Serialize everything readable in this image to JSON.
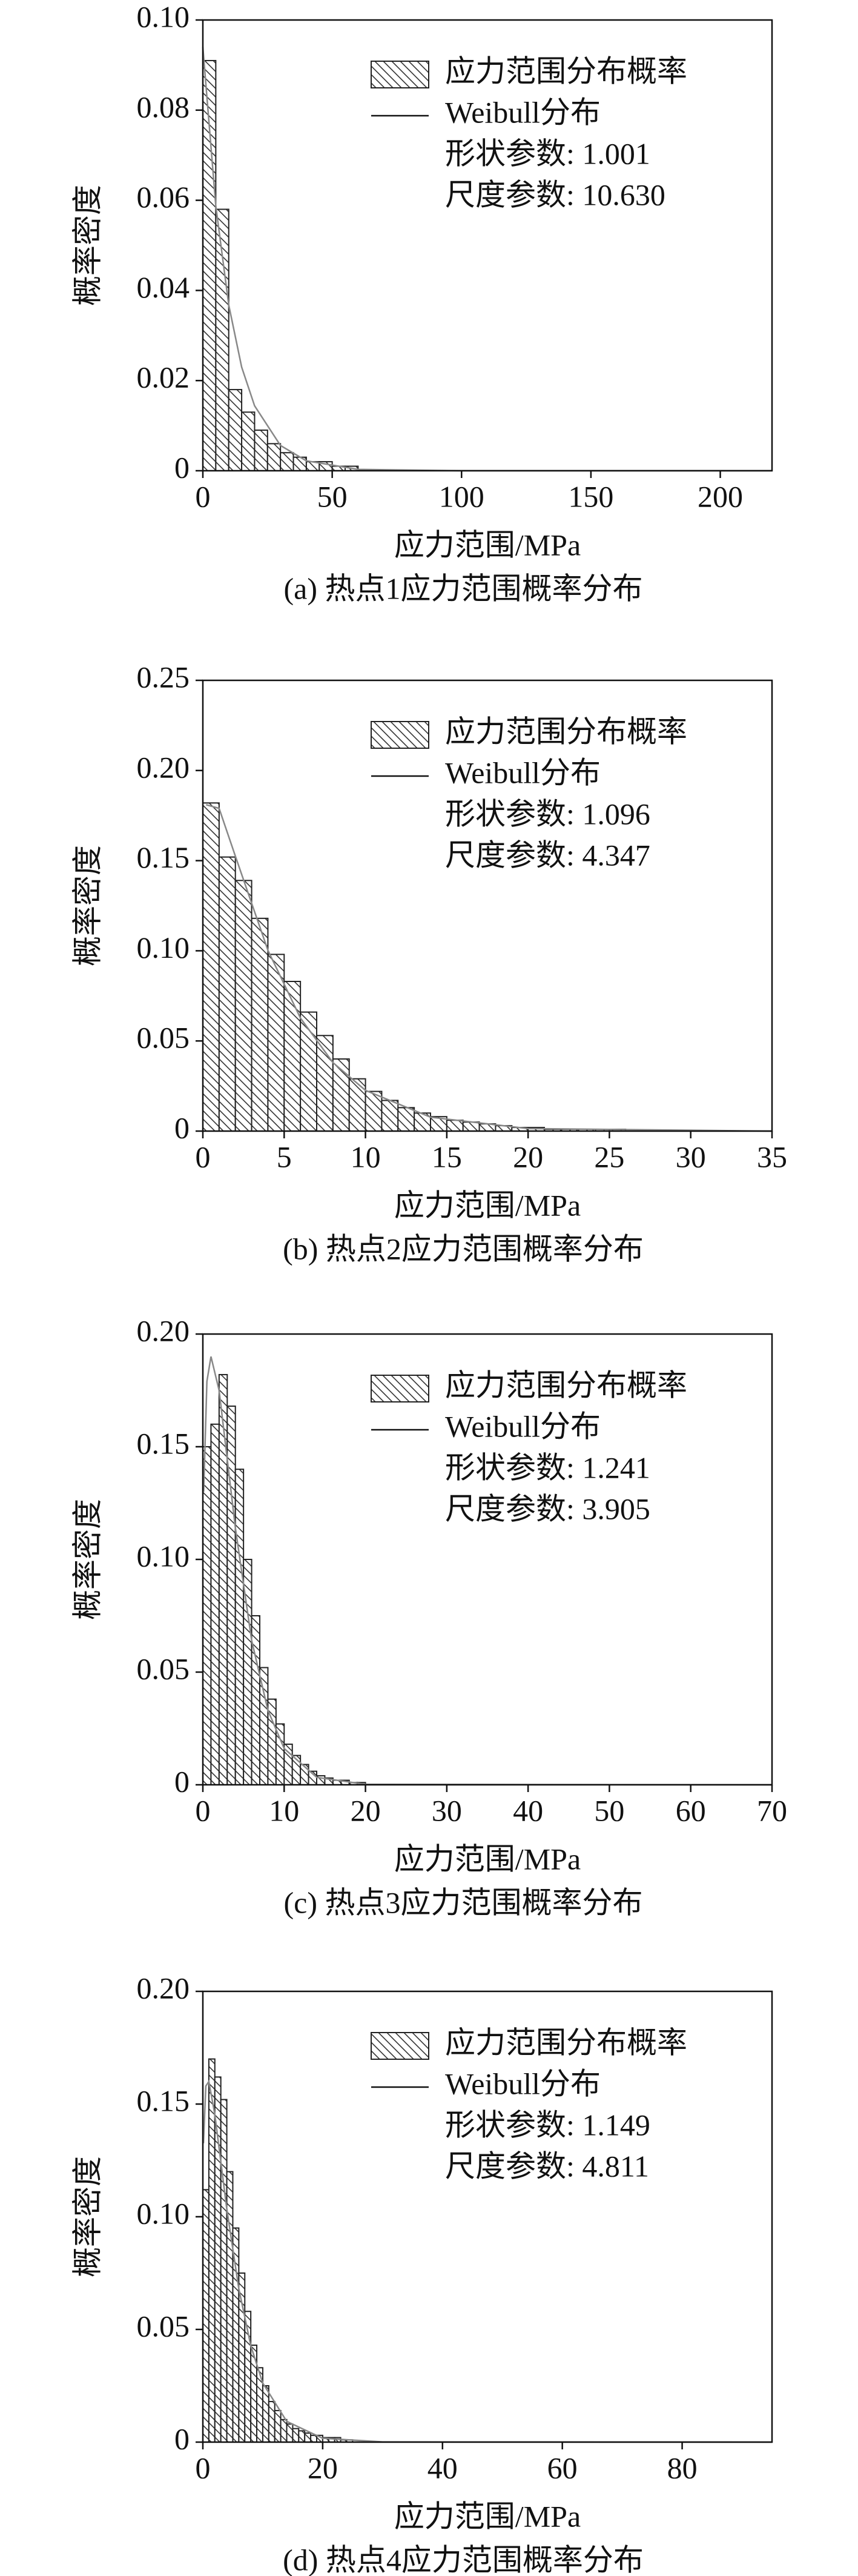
{
  "chart_data": [
    {
      "type": "histogram",
      "caption": "(a) 热点1应力范围概率分布",
      "xlabel": "应力范围/MPa",
      "ylabel": "概率密度",
      "hist_name": "应力范围分布概率",
      "bins": [
        0,
        5,
        10,
        15,
        20,
        25,
        30,
        35,
        40,
        45,
        50,
        55,
        60
      ],
      "values": [
        0.091,
        0.058,
        0.018,
        0.013,
        0.009,
        0.006,
        0.004,
        0.003,
        0.002,
        0.002,
        0.001,
        0.001
      ],
      "curve": {
        "name": "Weibull分布",
        "color": "#888888",
        "x": [
          0,
          5,
          10,
          15,
          20,
          30,
          40,
          60,
          100,
          220
        ],
        "values": [
          0.094,
          0.0588,
          0.0368,
          0.023,
          0.0144,
          0.0056,
          0.0022,
          0.0003,
          0,
          0
        ]
      },
      "annotations": [
        "形状参数: 1.001",
        "尺度参数: 10.630"
      ],
      "xlim": [
        0,
        220
      ],
      "xticks": [
        0,
        50,
        100,
        150,
        200
      ],
      "ylim": [
        0,
        0.1
      ],
      "yticks": [
        0,
        0.02,
        0.04,
        0.06,
        0.08,
        {
          "value": 0.1,
          "label": "0.10"
        }
      ]
    },
    {
      "type": "histogram",
      "caption": "(b) 热点2应力范围概率分布",
      "xlabel": "应力范围/MPa",
      "ylabel": "概率密度",
      "hist_name": "应力范围分布概率",
      "bins": [
        0,
        1,
        2,
        3,
        4,
        5,
        6,
        7,
        8,
        9,
        10,
        11,
        12,
        13,
        14,
        15,
        16,
        17,
        18,
        19,
        20,
        21,
        22,
        23,
        24,
        25,
        26
      ],
      "values": [
        0.182,
        0.152,
        0.139,
        0.118,
        0.098,
        0.083,
        0.066,
        0.053,
        0.04,
        0.029,
        0.022,
        0.017,
        0.013,
        0.01,
        0.008,
        0.006,
        0.005,
        0.004,
        0.003,
        0.002,
        0.002,
        0.001,
        0.001,
        0.001,
        0.001,
        0.001
      ],
      "curve": {
        "name": "Weibull分布",
        "color": "#888888",
        "x": [
          0.2,
          1,
          2,
          4,
          6,
          8,
          10,
          14,
          20,
          35
        ],
        "values": [
          0.181,
          0.179,
          0.1525,
          0.1003,
          0.0627,
          0.038,
          0.0226,
          0.0077,
          0.0014,
          0
        ]
      },
      "annotations": [
        "形状参数: 1.096",
        "尺度参数: 4.347"
      ],
      "xlim": [
        0,
        35
      ],
      "xticks": [
        0,
        5,
        10,
        15,
        20,
        25,
        30,
        35
      ],
      "ylim": [
        0,
        0.25
      ],
      "yticks": [
        0,
        0.05,
        {
          "value": 0.1,
          "label": "0.10"
        },
        0.15,
        {
          "value": 0.2,
          "label": "0.20"
        },
        0.25
      ]
    },
    {
      "type": "histogram",
      "caption": "(c) 热点3应力范围概率分布",
      "xlabel": "应力范围/MPa",
      "ylabel": "概率密度",
      "hist_name": "应力范围分布概率",
      "bins": [
        0,
        1,
        2,
        3,
        4,
        5,
        6,
        7,
        8,
        9,
        10,
        11,
        12,
        13,
        14,
        15,
        16,
        17,
        18,
        19,
        20
      ],
      "values": [
        0.15,
        0.16,
        0.182,
        0.168,
        0.14,
        0.1,
        0.075,
        0.052,
        0.038,
        0.027,
        0.018,
        0.013,
        0.009,
        0.006,
        0.004,
        0.003,
        0.002,
        0.002,
        0.001,
        0.001
      ],
      "curve": {
        "name": "Weibull分布",
        "color": "#888888",
        "x": [
          0.1,
          0.5,
          1,
          2,
          4,
          6,
          8,
          10,
          14,
          20,
          70
        ],
        "values": [
          0.13,
          0.179,
          0.19,
          0.175,
          0.114,
          0.0641,
          0.0331,
          0.0161,
          0.0033,
          0.0002,
          0
        ]
      },
      "annotations": [
        "形状参数: 1.241",
        "尺度参数: 3.905"
      ],
      "xlim": [
        0,
        70
      ],
      "xticks": [
        0,
        10,
        20,
        30,
        40,
        50,
        60,
        70
      ],
      "ylim": [
        0,
        0.2
      ],
      "yticks": [
        0,
        0.05,
        {
          "value": 0.1,
          "label": "0.10"
        },
        0.15,
        {
          "value": 0.2,
          "label": "0.20"
        }
      ]
    },
    {
      "type": "histogram",
      "caption": "(d) 热点4应力范围概率分布",
      "xlabel": "应力范围/MPa",
      "ylabel": "概率密度",
      "hist_name": "应力范围分布概率",
      "bins": [
        0,
        1,
        2,
        3,
        4,
        5,
        6,
        7,
        8,
        9,
        10,
        11,
        12,
        13,
        14,
        15,
        16,
        17,
        18,
        19,
        20,
        21,
        22,
        23,
        24,
        25
      ],
      "values": [
        0.112,
        0.17,
        0.162,
        0.152,
        0.12,
        0.095,
        0.075,
        0.058,
        0.043,
        0.033,
        0.025,
        0.018,
        0.014,
        0.01,
        0.008,
        0.006,
        0.005,
        0.004,
        0.003,
        0.003,
        0.002,
        0.002,
        0.002,
        0.001,
        0.001
      ],
      "curve": {
        "name": "Weibull分布",
        "color": "#888888",
        "x": [
          0.1,
          0.5,
          1,
          2,
          4,
          6,
          8,
          10,
          14,
          20,
          30,
          95
        ],
        "values": [
          0.1326,
          0.158,
          0.16,
          0.1454,
          0.1034,
          0.0681,
          0.0428,
          0.0262,
          0.0092,
          0.0017,
          0.0001,
          0
        ]
      },
      "annotations": [
        "形状参数: 1.149",
        "尺度参数: 4.811"
      ],
      "xlim": [
        0,
        95
      ],
      "xticks": [
        0,
        20,
        40,
        60,
        80
      ],
      "ylim": [
        0,
        0.2
      ],
      "yticks": [
        0,
        0.05,
        {
          "value": 0.1,
          "label": "0.10"
        },
        0.15,
        {
          "value": 0.2,
          "label": "0.20"
        }
      ]
    }
  ]
}
